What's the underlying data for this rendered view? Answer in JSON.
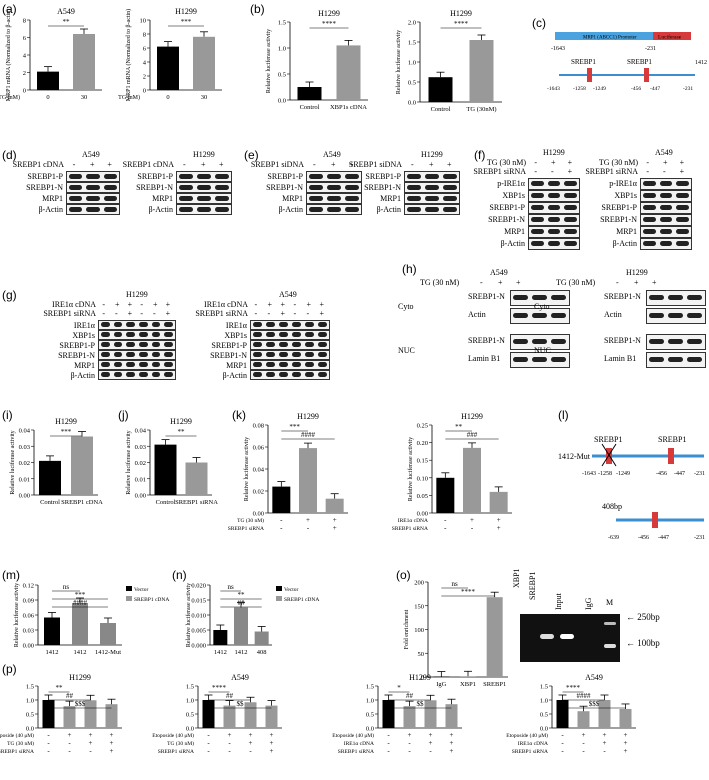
{
  "labels": {
    "a": "(a)",
    "b": "(b)",
    "c": "(c)",
    "d": "(d)",
    "e": "(e)",
    "f": "(f)",
    "g": "(g)",
    "h": "(h)",
    "i": "(i)",
    "j": "(j)",
    "k": "(k)",
    "l": "(l)",
    "m": "(m)",
    "n": "(n)",
    "o": "(o)",
    "p": "(p)"
  },
  "chart_data": [
    {
      "id": "a1",
      "type": "bar",
      "title": "A549",
      "categories": [
        "0",
        "30"
      ],
      "values": [
        2.1,
        6.4
      ],
      "xlabel": "TG (nM)",
      "ylabel": "MRP1 mRNA (Normalized to β-actin)",
      "ylim": [
        0,
        8
      ],
      "yticks": [
        "0",
        "2",
        "4",
        "6",
        "8"
      ],
      "sig": [
        "**"
      ]
    },
    {
      "id": "a2",
      "type": "bar",
      "title": "H1299",
      "categories": [
        "0",
        "30"
      ],
      "values": [
        6.2,
        7.6
      ],
      "xlabel": "TG (nM)",
      "ylabel": "MRP1 mRNA (Normalized to β-actin)",
      "ylim": [
        0,
        10
      ],
      "yticks": [
        "0",
        "2",
        "4",
        "6",
        "8",
        "10"
      ],
      "sig": [
        "***"
      ]
    },
    {
      "id": "b1",
      "type": "bar",
      "title": "H1299",
      "categories": [
        "Control",
        "XBP1s cDNA"
      ],
      "values": [
        0.25,
        1.05
      ],
      "ylabel": "Relative luciferase activity",
      "ylim": [
        0,
        1.5
      ],
      "yticks": [
        "0.0",
        "0.5",
        "1.0",
        "1.5"
      ],
      "sig": [
        "****"
      ]
    },
    {
      "id": "b2",
      "type": "bar",
      "title": "H1299",
      "categories": [
        "Control",
        "TG (30nM)"
      ],
      "values": [
        0.62,
        1.55
      ],
      "ylabel": "Relative luciferase activity",
      "ylim": [
        0,
        2.0
      ],
      "yticks": [
        "0.0",
        "0.5",
        "1.0",
        "1.5",
        "2.0"
      ],
      "sig": [
        "****"
      ]
    },
    {
      "id": "i",
      "type": "bar",
      "title": "H1299",
      "categories": [
        "Control",
        "SREBP1 cDNA"
      ],
      "values": [
        0.021,
        0.036
      ],
      "ylabel": "Relative luciferase activity",
      "ylim": [
        0,
        0.04
      ],
      "yticks": [
        "0.00",
        "0.01",
        "0.02",
        "0.03",
        "0.04"
      ],
      "sig": [
        "***"
      ]
    },
    {
      "id": "j",
      "type": "bar",
      "title": "H1299",
      "categories": [
        "Control",
        "SREBP1 siRNA"
      ],
      "values": [
        0.031,
        0.02
      ],
      "ylabel": "Relative luciferase activity",
      "ylim": [
        0,
        0.04
      ],
      "yticks": [
        "0.00",
        "0.01",
        "0.02",
        "0.03",
        "0.04"
      ],
      "sig": [
        "**"
      ]
    },
    {
      "id": "k1",
      "type": "bar",
      "title": "H1299",
      "categories": [
        "1",
        "2",
        "3"
      ],
      "values": [
        0.024,
        0.059,
        0.013
      ],
      "ylabel": "Relative luciferase activity",
      "ylim": [
        0,
        0.08
      ],
      "yticks": [
        "0.00",
        "0.02",
        "0.04",
        "0.06",
        "0.08"
      ],
      "sig": [
        "***",
        "####"
      ],
      "conditions": [
        {
          "name": "TG (30 nM)",
          "signs": [
            "-",
            "+",
            "+"
          ]
        },
        {
          "name": "SREBP1 siRNA",
          "signs": [
            "-",
            "-",
            "+"
          ]
        }
      ]
    },
    {
      "id": "k2",
      "type": "bar",
      "title": "H1299",
      "categories": [
        "1",
        "2",
        "3"
      ],
      "values": [
        0.1,
        0.185,
        0.06
      ],
      "ylabel": "Relative luciferase activity",
      "ylim": [
        0,
        0.25
      ],
      "yticks": [
        "0.00",
        "0.05",
        "0.10",
        "0.15",
        "0.20",
        "0.25"
      ],
      "sig": [
        "**",
        "###"
      ],
      "conditions": [
        {
          "name": "IRE1α cDNA",
          "signs": [
            "-",
            "+",
            "+"
          ]
        },
        {
          "name": "SREBP1 siRNA",
          "signs": [
            "-",
            "-",
            "+"
          ]
        }
      ]
    },
    {
      "id": "m",
      "type": "bar",
      "categories": [
        "1412",
        "1412",
        "1412-Mut"
      ],
      "values": [
        0.055,
        0.084,
        0.044
      ],
      "colors": [
        "#000000",
        "#888888",
        "#888888"
      ],
      "ylabel": "Relative luciferase activity",
      "ylim": [
        0,
        0.12
      ],
      "yticks": [
        "0.00",
        "0.03",
        "0.06",
        "0.09",
        "0.12"
      ],
      "sig": [
        "ns",
        "***",
        "####"
      ],
      "legend": [
        "Vector",
        "SREBP1 cDNA"
      ]
    },
    {
      "id": "n",
      "type": "bar",
      "categories": [
        "1412",
        "1412",
        "408"
      ],
      "values": [
        0.005,
        0.0125,
        0.0045
      ],
      "colors": [
        "#000000",
        "#888888",
        "#888888"
      ],
      "ylabel": "Relative luciferase activity",
      "ylim": [
        0,
        0.02
      ],
      "yticks": [
        "0.000",
        "0.005",
        "0.010",
        "0.015",
        "0.020"
      ],
      "sig": [
        "ns",
        "**",
        "##"
      ],
      "legend": [
        "Vector",
        "SREBP1 cDNA"
      ]
    },
    {
      "id": "o",
      "type": "bar",
      "categories": [
        "IgG",
        "XBP1",
        "SREBP1"
      ],
      "values": [
        1,
        1.5,
        168
      ],
      "ylabel": "Fold enrichment",
      "ylim": [
        0,
        200
      ],
      "yticks": [
        "0",
        "50",
        "100",
        "150",
        "200"
      ],
      "sig": [
        "ns",
        "****"
      ]
    },
    {
      "id": "p1",
      "type": "bar",
      "title": "H1299",
      "categories": [
        "1",
        "2",
        "3",
        "4"
      ],
      "values": [
        1.0,
        0.78,
        0.99,
        0.85
      ],
      "ylim": [
        0,
        1.5
      ],
      "yticks": [
        "0.0",
        "0.5",
        "1.0",
        "1.5"
      ],
      "sig": [
        "**",
        "##",
        "$$$"
      ],
      "conditions": [
        {
          "name": "Etoposide (40 μM)",
          "signs": [
            "-",
            "+",
            "+",
            "+"
          ]
        },
        {
          "name": "TG (30 nM)",
          "signs": [
            "-",
            "-",
            "+",
            "+"
          ]
        },
        {
          "name": "SREBP1 siRNA",
          "signs": [
            "-",
            "-",
            "-",
            "+"
          ]
        }
      ]
    },
    {
      "id": "p2",
      "type": "bar",
      "title": "A549",
      "categories": [
        "1",
        "2",
        "3",
        "4"
      ],
      "values": [
        1.0,
        0.8,
        0.92,
        0.8
      ],
      "ylim": [
        0,
        1.5
      ],
      "yticks": [
        "0.0",
        "0.5",
        "1.0",
        "1.5"
      ],
      "sig": [
        "****",
        "##",
        "$$"
      ],
      "conditions": [
        {
          "name": "Etoposide (40 μM)",
          "signs": [
            "-",
            "+",
            "+",
            "+"
          ]
        },
        {
          "name": "TG (30 nM)",
          "signs": [
            "-",
            "-",
            "+",
            "+"
          ]
        },
        {
          "name": "SREBP1 siRNA",
          "signs": [
            "-",
            "-",
            "-",
            "+"
          ]
        }
      ]
    },
    {
      "id": "p3",
      "type": "bar",
      "title": "H1299",
      "categories": [
        "1",
        "2",
        "3",
        "4"
      ],
      "values": [
        1.0,
        0.78,
        0.99,
        0.85
      ],
      "ylim": [
        0,
        1.5
      ],
      "yticks": [
        "0.0",
        "0.5",
        "1.0",
        "1.5"
      ],
      "sig": [
        "*",
        "##",
        "$$"
      ],
      "conditions": [
        {
          "name": "Etoposide (40 μM)",
          "signs": [
            "-",
            "+",
            "+",
            "+"
          ]
        },
        {
          "name": "IRE1α cDNA",
          "signs": [
            "-",
            "-",
            "+",
            "+"
          ]
        },
        {
          "name": "SREBP1 siRNA",
          "signs": [
            "-",
            "-",
            "-",
            "+"
          ]
        }
      ]
    },
    {
      "id": "p4",
      "type": "bar",
      "title": "A549",
      "categories": [
        "1",
        "2",
        "3",
        "4"
      ],
      "values": [
        1.0,
        0.6,
        1.0,
        0.68
      ],
      "ylim": [
        0,
        1.5
      ],
      "yticks": [
        "0.0",
        "0.5",
        "1.0",
        "1.5"
      ],
      "sig": [
        "****",
        "####",
        "$$$"
      ],
      "conditions": [
        {
          "name": "Etoposide (40 μM)",
          "signs": [
            "-",
            "+",
            "+",
            "+"
          ]
        },
        {
          "name": "IRE1α cDNA",
          "signs": [
            "-",
            "-",
            "+",
            "+"
          ]
        },
        {
          "name": "SREBP1 siRNA",
          "signs": [
            "-",
            "-",
            "-",
            "+"
          ]
        }
      ]
    }
  ],
  "blots": [
    {
      "id": "d1",
      "title": "A549",
      "conditions": [
        {
          "name": "SREBP1 cDNA",
          "signs": [
            "-",
            "+",
            "+"
          ]
        }
      ],
      "rows": [
        "SREBP1-P",
        "SREBP1-N",
        "MRP1",
        "β-Actin"
      ]
    },
    {
      "id": "d2",
      "title": "H1299",
      "conditions": [
        {
          "name": "SREBP1 cDNA",
          "signs": [
            "-",
            "+",
            "+"
          ]
        }
      ],
      "rows": [
        "SREBP1-P",
        "SREBP1-N",
        "MRP1",
        "β-Actin"
      ]
    },
    {
      "id": "e1",
      "title": "A549",
      "conditions": [
        {
          "name": "SREBP1 siDNA",
          "signs": [
            "-",
            "+",
            "+"
          ]
        }
      ],
      "rows": [
        "SREBP1-P",
        "SREBP1-N",
        "MRP1",
        "β-Actin"
      ]
    },
    {
      "id": "e2",
      "title": "H1299",
      "conditions": [
        {
          "name": "SREBP1 siDNA",
          "signs": [
            "-",
            "+",
            "+"
          ]
        }
      ],
      "rows": [
        "SREBP1-P",
        "SREBP1-N",
        "MRP1",
        "β-Actin"
      ]
    },
    {
      "id": "f1",
      "title": "H1299",
      "conditions": [
        {
          "name": "TG (30 nM)",
          "signs": [
            "-",
            "+",
            "+"
          ]
        },
        {
          "name": "SREBP1 siRNA",
          "signs": [
            "-",
            "-",
            "+"
          ]
        }
      ],
      "rows": [
        "p-IRE1α",
        "XBP1s",
        "SREBP1-P",
        "SREBP1-N",
        "MRP1",
        "β-Actin"
      ]
    },
    {
      "id": "f2",
      "title": "A549",
      "conditions": [
        {
          "name": "TG (30 nM)",
          "signs": [
            "-",
            "+",
            "+"
          ]
        },
        {
          "name": "SREBP1 siRNA",
          "signs": [
            "-",
            "-",
            "+"
          ]
        }
      ],
      "rows": [
        "p-IRE1α",
        "XBP1s",
        "SREBP1-P",
        "SREBP1-N",
        "MRP1",
        "β-Actin"
      ]
    },
    {
      "id": "g1",
      "title": "H1299",
      "conditions": [
        {
          "name": "IRE1α cDNA",
          "signs": [
            "-",
            "+",
            "+",
            "-",
            "+",
            "+"
          ]
        },
        {
          "name": "SREBP1 siRNA",
          "signs": [
            "-",
            "-",
            "+",
            "-",
            "-",
            "+"
          ]
        }
      ],
      "rows": [
        "IRE1α",
        "XBP1s",
        "SREBP1-P",
        "SREBP1-N",
        "MRP1",
        "β-Actin"
      ]
    },
    {
      "id": "g2",
      "title": "A549",
      "conditions": [
        {
          "name": "IRE1α cDNA",
          "signs": [
            "-",
            "+",
            "+",
            "-",
            "+",
            "+"
          ]
        },
        {
          "name": "SREBP1 siRNA",
          "signs": [
            "-",
            "-",
            "+",
            "-",
            "-",
            "+"
          ]
        }
      ],
      "rows": [
        "IRE1α",
        "XBP1s",
        "SREBP1-P",
        "SREBP1-N",
        "MRP1",
        "β-Actin"
      ]
    }
  ],
  "h": {
    "left": {
      "title": "A549",
      "condition": "TG (30 nM)",
      "signs": [
        "-",
        "+",
        "+"
      ],
      "cyto_rows": [
        "SREBP1-N",
        "Actin"
      ],
      "nuc_rows": [
        "SREBP1-N",
        "Lamin B1"
      ]
    },
    "right": {
      "title": "H1299",
      "condition": "TG (30 nM)",
      "signs": [
        "-",
        "+",
        "+"
      ],
      "cyto_rows": [
        "SREBP1-N",
        "Actin"
      ],
      "nuc_rows": [
        "SREBP1-N",
        "Lamin B1"
      ]
    },
    "cyto": "Cyto",
    "nuc": "NUC"
  },
  "c": {
    "bar_left": "MRP1 (ABCC1) Promoter",
    "bar_right": "Luciferase",
    "n1643": "-1643",
    "n231": "-231",
    "n1412": "1412",
    "site1": "SREBP1",
    "site2": "SREBP1",
    "pos": [
      "-1643",
      "-1258",
      "-1249",
      "-456",
      "-447",
      "-231"
    ]
  },
  "l": {
    "mut_label": "1412-Mut",
    "label408": "408bp",
    "site": "SREBP1",
    "pos1": [
      "-1643",
      "-1258",
      "-1249",
      "-456",
      "-447",
      "-231"
    ],
    "pos2": [
      "-639",
      "-456",
      "-447",
      "-231"
    ],
    "colors": {
      "line": "#3b8fd1",
      "site": "#d63a3a"
    }
  },
  "o_gel": {
    "lanes": [
      "XBP1",
      "SREBP1",
      "Input",
      "IgG",
      "M"
    ],
    "marker1": "250bp",
    "marker2": "100bp"
  }
}
